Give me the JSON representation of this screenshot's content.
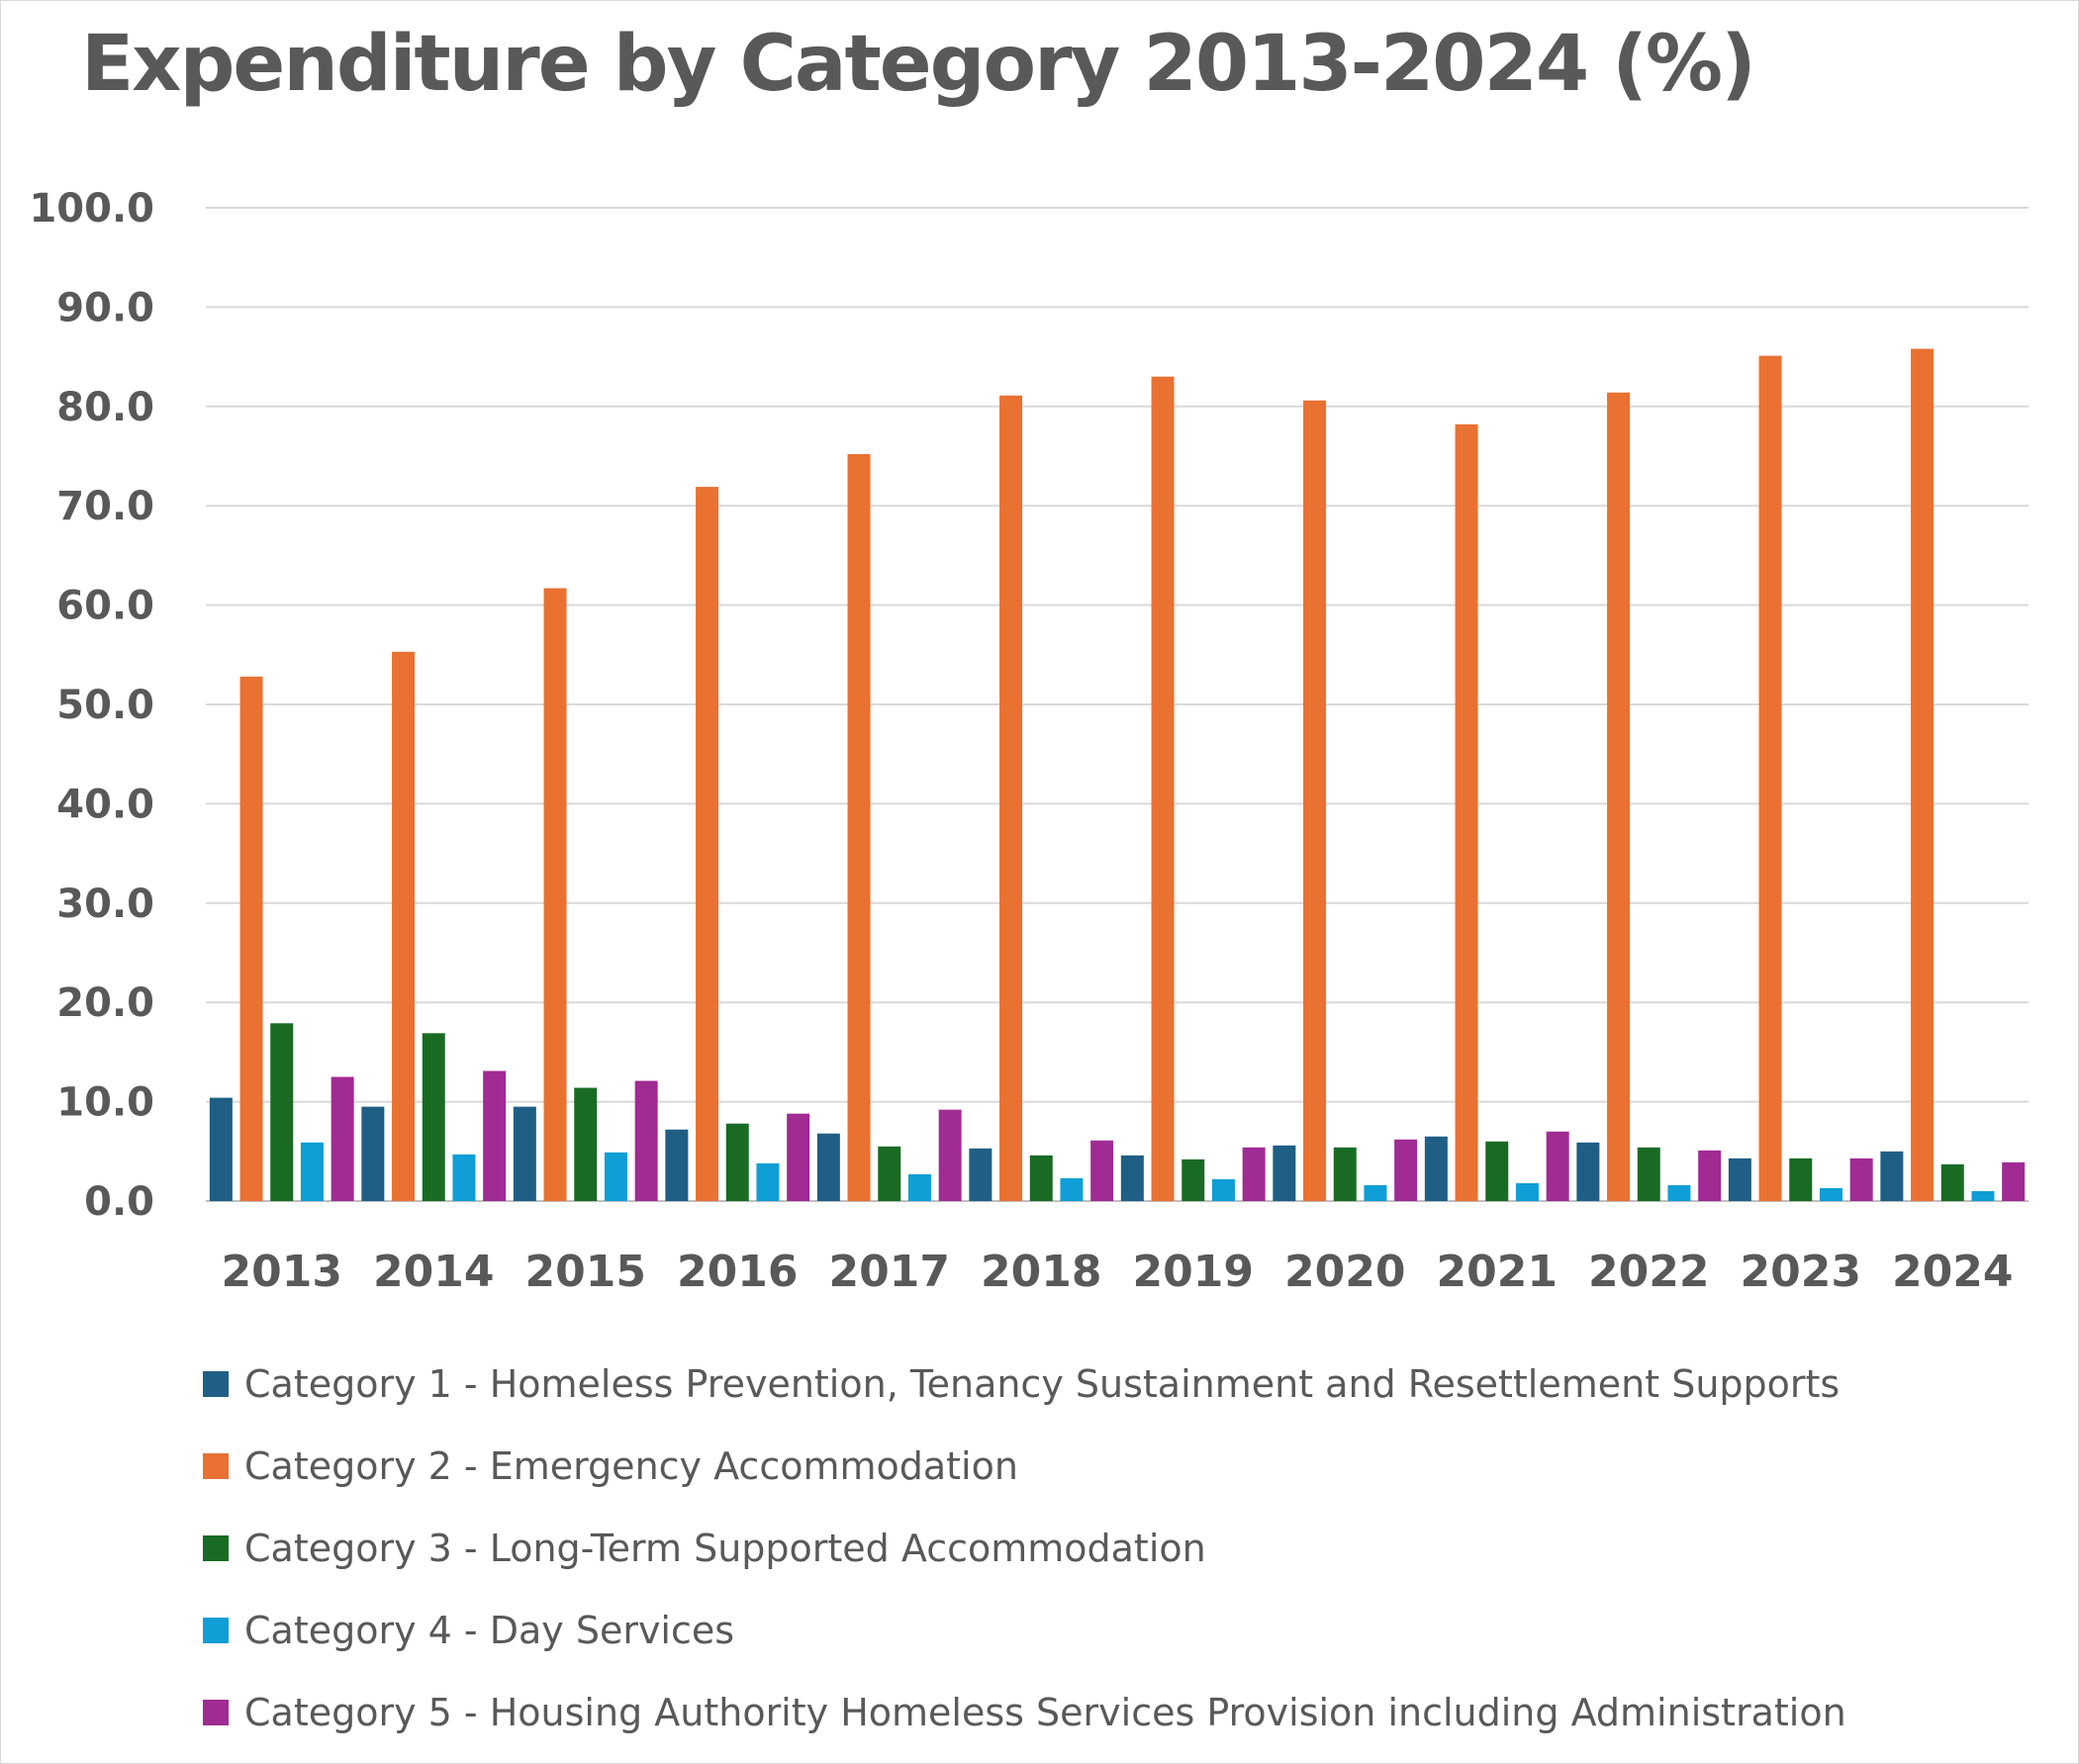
{
  "chart_data": {
    "type": "bar",
    "title": "Expenditure by Category 2013-2024 (%)",
    "xlabel": "",
    "ylabel": "",
    "ylim": [
      0,
      100
    ],
    "yticks": [
      "0.0",
      "10.0",
      "20.0",
      "30.0",
      "40.0",
      "50.0",
      "60.0",
      "70.0",
      "80.0",
      "90.0",
      "100.0"
    ],
    "grid": true,
    "legend_position": "bottom",
    "categories": [
      "2013",
      "2014",
      "2015",
      "2016",
      "2017",
      "2018",
      "2019",
      "2020",
      "2021",
      "2022",
      "2023",
      "2024"
    ],
    "series": [
      {
        "name": "Category 1 - Homeless Prevention, Tenancy Sustainment and Resettlement Supports",
        "color": "#1f5f85",
        "values": [
          10.4,
          9.5,
          9.5,
          7.2,
          6.8,
          5.3,
          4.6,
          5.6,
          6.5,
          5.9,
          4.3,
          5.0
        ]
      },
      {
        "name": "Category 2 - Emergency Accommodation",
        "color": "#e97132",
        "values": [
          52.8,
          55.3,
          61.7,
          71.9,
          75.2,
          81.1,
          83.0,
          80.6,
          78.2,
          81.4,
          85.1,
          85.8
        ]
      },
      {
        "name": "Category 3 - Long-Term Supported Accommodation",
        "color": "#196b24",
        "values": [
          17.9,
          16.9,
          11.4,
          7.8,
          5.5,
          4.6,
          4.2,
          5.4,
          6.0,
          5.4,
          4.3,
          3.7
        ]
      },
      {
        "name": "Category 4 - Day Services",
        "color": "#0f9ed5",
        "values": [
          5.9,
          4.7,
          4.9,
          3.8,
          2.7,
          2.3,
          2.2,
          1.6,
          1.8,
          1.6,
          1.3,
          1.0
        ]
      },
      {
        "name": "Category 5 - Housing Authority Homeless Services Provision including Administration",
        "color": "#a02b93",
        "values": [
          12.5,
          13.1,
          12.1,
          8.8,
          9.2,
          6.1,
          5.4,
          6.2,
          7.0,
          5.1,
          4.3,
          3.9
        ]
      }
    ]
  }
}
